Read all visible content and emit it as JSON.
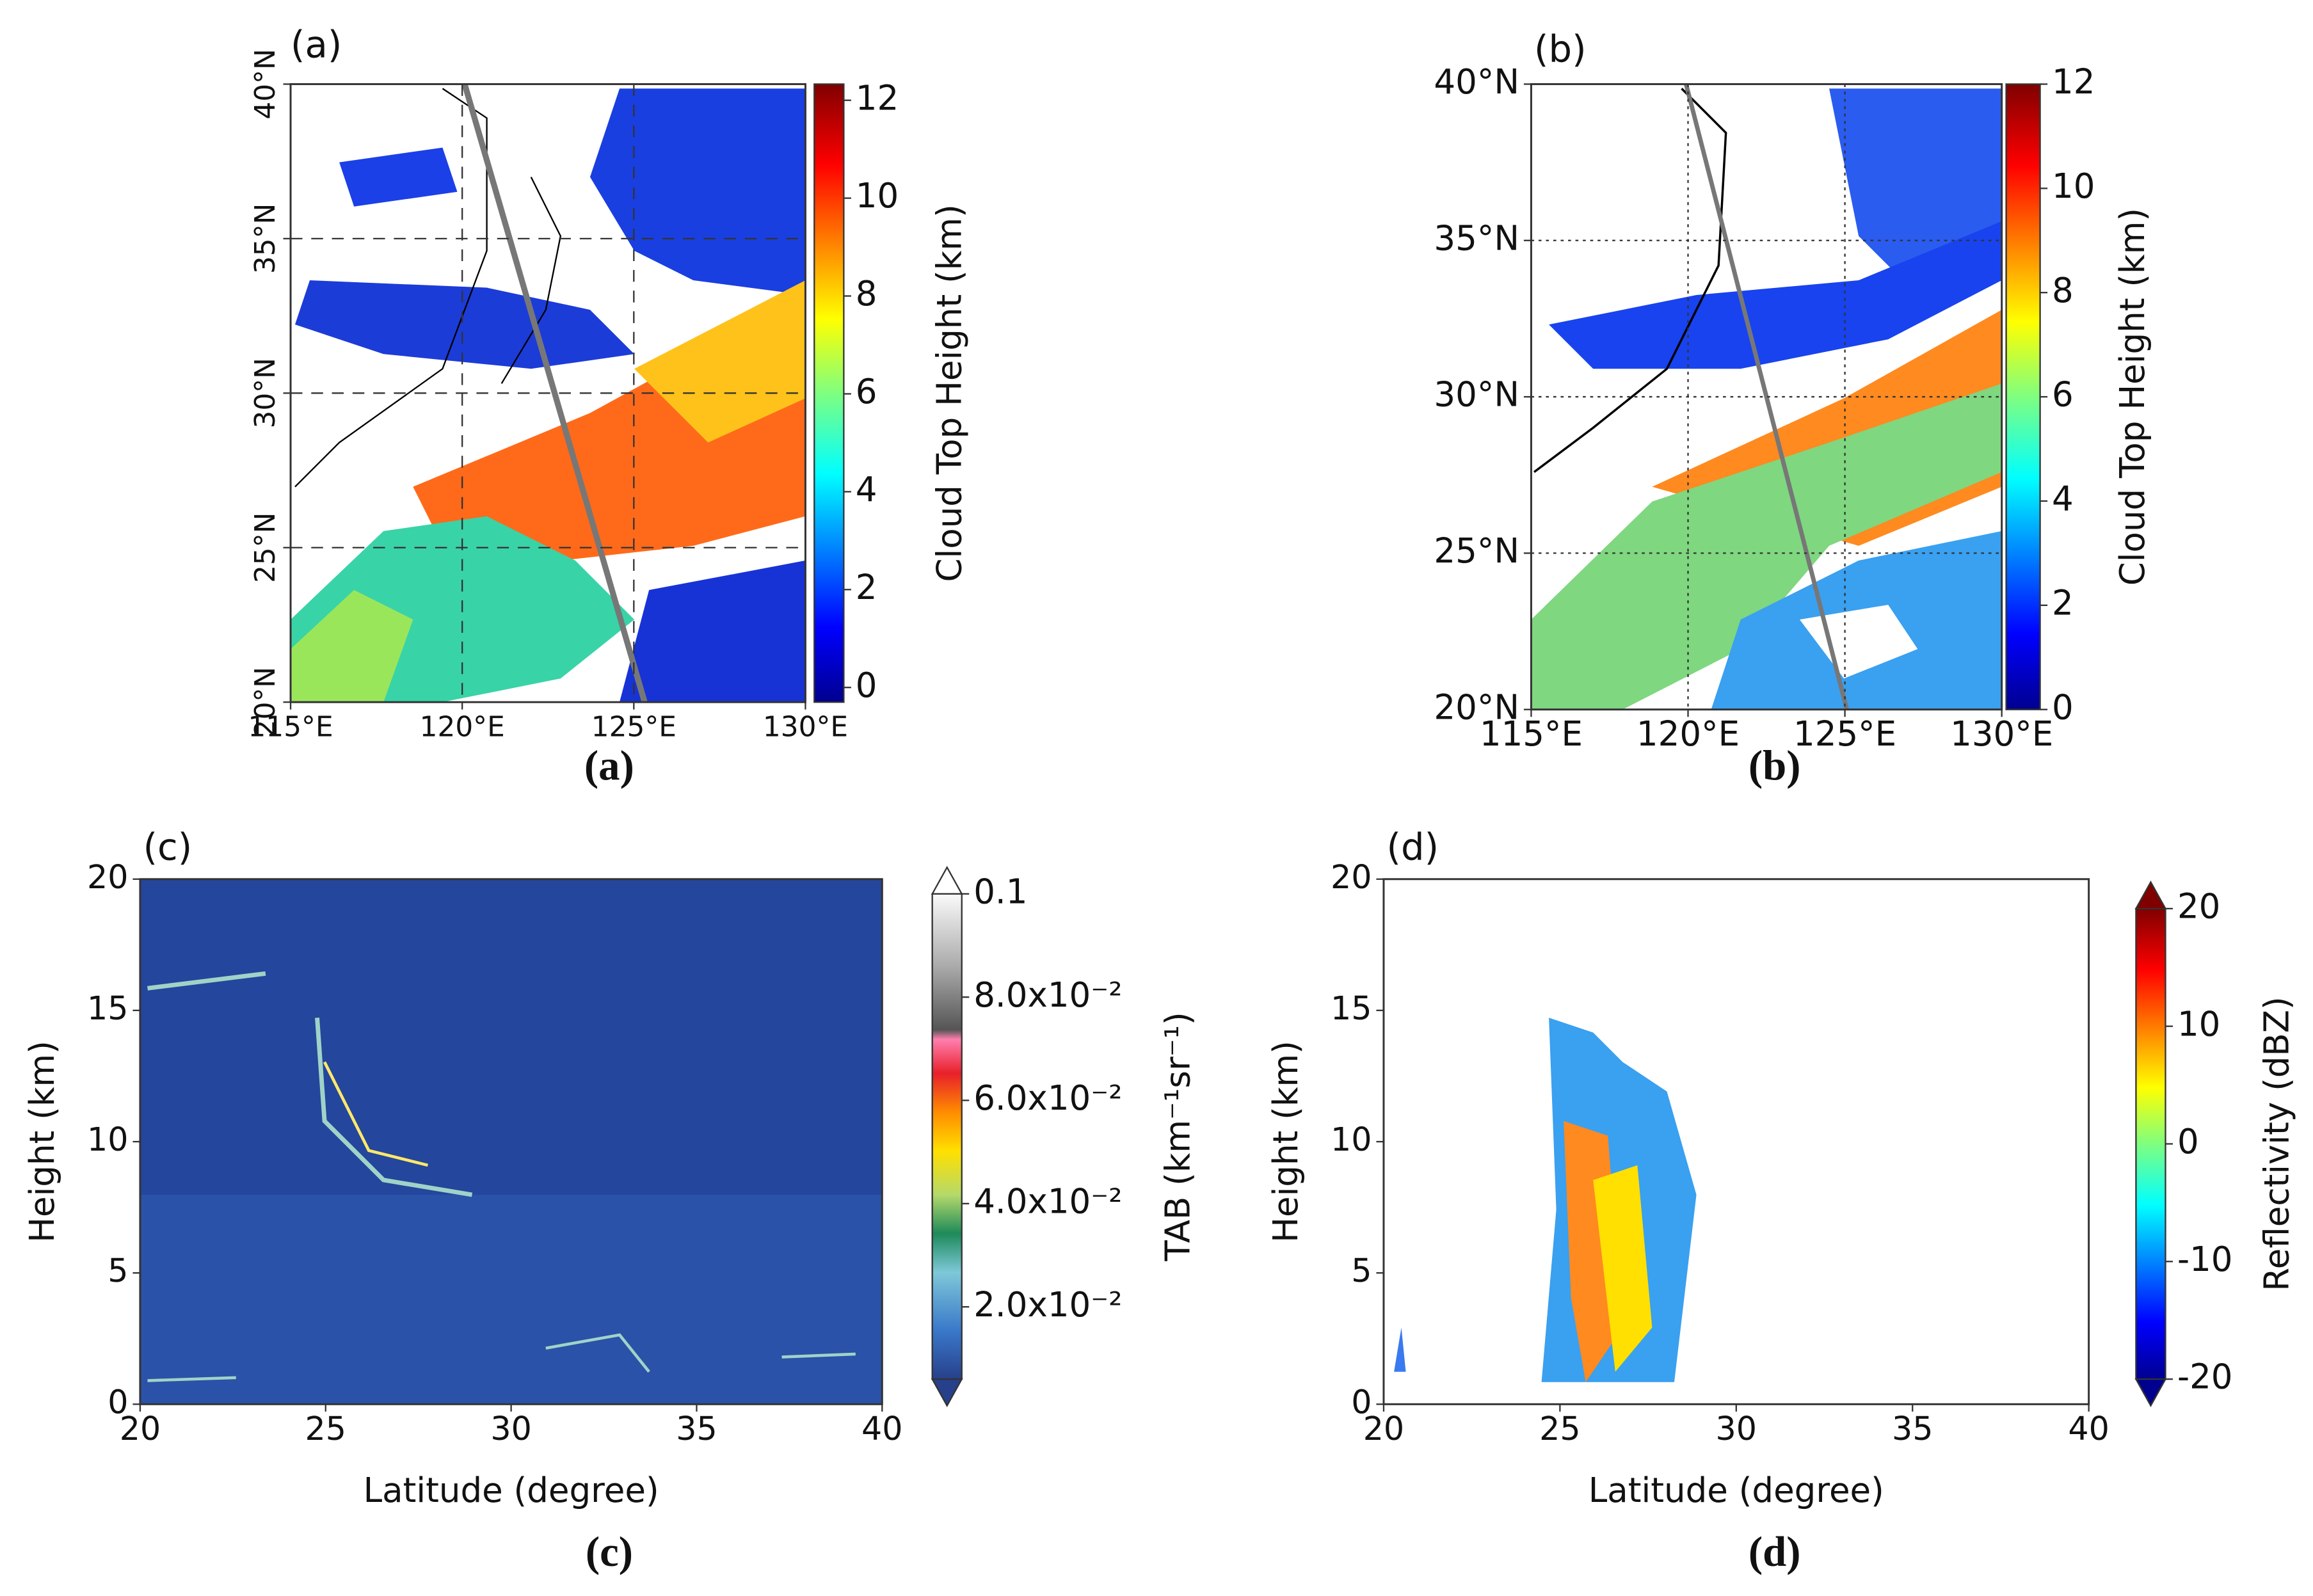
{
  "chart_data": [
    {
      "type": "map",
      "label": "(a)",
      "caption": "(a)",
      "xlim": [
        115,
        130
      ],
      "ylim": [
        20,
        40
      ],
      "xticks": [
        {
          "value": 115,
          "label": "115°E"
        },
        {
          "value": 120,
          "label": "120°E"
        },
        {
          "value": 125,
          "label": "125°E"
        },
        {
          "value": 130,
          "label": "130°E"
        }
      ],
      "yticks": [
        {
          "value": 20,
          "label": "20°N"
        },
        {
          "value": 25,
          "label": "25°N"
        },
        {
          "value": 30,
          "label": "30°N"
        },
        {
          "value": 35,
          "label": "35°N"
        },
        {
          "value": 40,
          "label": "40°N"
        }
      ],
      "grid": "dashed",
      "colorbar": {
        "label": "Cloud Top Height (km)",
        "lim": [
          -0.3,
          12.33
        ],
        "ticks": [
          0,
          2,
          4,
          6,
          8,
          10,
          12
        ],
        "colormap": "jet"
      }
    },
    {
      "type": "map",
      "label": "(b)",
      "caption": "(b)",
      "xlim": [
        115,
        130
      ],
      "ylim": [
        20,
        40
      ],
      "xticks": [
        {
          "value": 115,
          "label": "115°E"
        },
        {
          "value": 120,
          "label": "120°E"
        },
        {
          "value": 125,
          "label": "125°E"
        },
        {
          "value": 130,
          "label": "130°E"
        }
      ],
      "yticks": [
        {
          "value": 20,
          "label": "20°N"
        },
        {
          "value": 25,
          "label": "25°N"
        },
        {
          "value": 30,
          "label": "30°N"
        },
        {
          "value": 35,
          "label": "35°N"
        },
        {
          "value": 40,
          "label": "40°N"
        }
      ],
      "grid": "dotted",
      "colorbar": {
        "label": "Cloud Top Height (km)",
        "lim": [
          0,
          12
        ],
        "ticks": [
          0,
          2,
          4,
          6,
          8,
          10,
          12
        ],
        "colormap": "jet"
      }
    },
    {
      "type": "heatmap",
      "label": "(c)",
      "caption": "(c)",
      "xlabel": "Latitude (degree)",
      "ylabel": "Height (km)",
      "xlim": [
        20,
        40
      ],
      "ylim": [
        0,
        20
      ],
      "xticks": [
        20,
        25,
        30,
        35,
        40
      ],
      "yticks": [
        0,
        5,
        10,
        15,
        20
      ],
      "colorbar": {
        "label": "TAB (km⁻¹sr⁻¹)",
        "lim": [
          0.006,
          0.1
        ],
        "ticks": [
          {
            "value": 0.02,
            "label": "2.0x10⁻²"
          },
          {
            "value": 0.04,
            "label": "4.0x10⁻²"
          },
          {
            "value": 0.06,
            "label": "6.0x10⁻²"
          },
          {
            "value": 0.08,
            "label": "8.0x10⁻²"
          },
          0.1
        ],
        "colormap": "tab"
      }
    },
    {
      "type": "heatmap",
      "label": "(d)",
      "caption": "(d)",
      "xlabel": "Latitude (degree)",
      "ylabel": "Height (km)",
      "xlim": [
        20,
        40
      ],
      "ylim": [
        0,
        20
      ],
      "xticks": [
        20,
        25,
        30,
        35,
        40
      ],
      "yticks": [
        0,
        5,
        10,
        15,
        20
      ],
      "colorbar": {
        "label": "Reflectivity (dBZ)",
        "lim": [
          -20,
          20
        ],
        "ticks": [
          -20,
          -10,
          0,
          10,
          20
        ],
        "colormap": "jet"
      }
    }
  ]
}
